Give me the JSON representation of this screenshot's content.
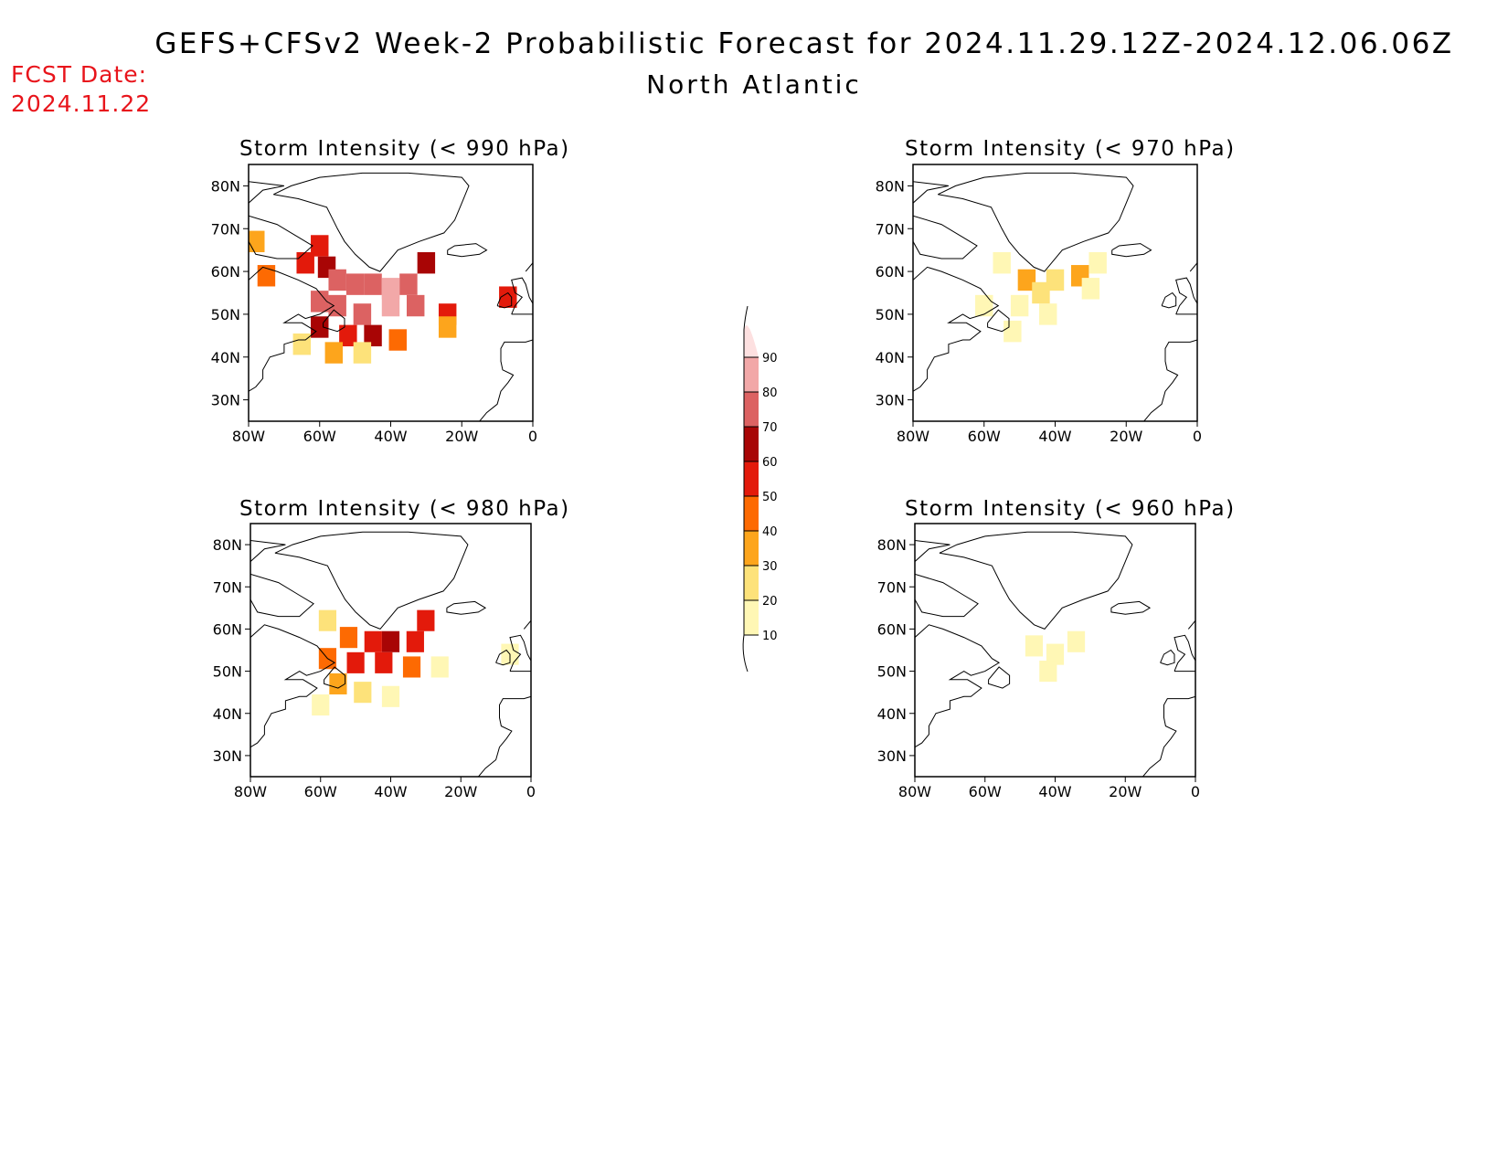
{
  "header": {
    "title": "GEFS+CFSv2 Week-2 Probabilistic Forecast for 2024.11.29.12Z-2024.12.06.06Z",
    "region": "North Atlantic",
    "fcst_label": "FCST Date:",
    "fcst_date": "2024.11.22",
    "fcst_color": "#e8141b"
  },
  "axes": {
    "lon_ticks": [
      {
        "value": -80,
        "label": "80W"
      },
      {
        "value": -60,
        "label": "60W"
      },
      {
        "value": -40,
        "label": "40W"
      },
      {
        "value": -20,
        "label": "20W"
      },
      {
        "value": 0,
        "label": "0"
      }
    ],
    "lat_ticks": [
      {
        "value": 80,
        "label": "80N"
      },
      {
        "value": 70,
        "label": "70N"
      },
      {
        "value": 60,
        "label": "60N"
      },
      {
        "value": 50,
        "label": "50N"
      },
      {
        "value": 40,
        "label": "40N"
      },
      {
        "value": 30,
        "label": "30N"
      }
    ],
    "lon_range": [
      -80,
      0
    ],
    "lat_range": [
      25,
      85
    ]
  },
  "legend": {
    "levels": [
      10,
      20,
      30,
      40,
      50,
      60,
      70,
      80,
      90
    ],
    "colors": [
      "#fff7b5",
      "#fde27a",
      "#fda51c",
      "#fd6a02",
      "#e31a0b",
      "#a80505",
      "#dc6262",
      "#f2a8a8",
      "#fde0e0"
    ]
  },
  "chart_data": [
    {
      "type": "heatmap",
      "title": "Storm Intensity (< 990 hPa)",
      "cells": [
        {
          "lon": -78,
          "lat": 67,
          "level": 3
        },
        {
          "lon": -75,
          "lat": 59,
          "level": 4
        },
        {
          "lon": -60,
          "lat": 66,
          "level": 5
        },
        {
          "lon": -64,
          "lat": 62,
          "level": 5
        },
        {
          "lon": -58,
          "lat": 61,
          "level": 6
        },
        {
          "lon": -55,
          "lat": 58,
          "level": 7
        },
        {
          "lon": -50,
          "lat": 57,
          "level": 7
        },
        {
          "lon": -45,
          "lat": 57,
          "level": 7
        },
        {
          "lon": -40,
          "lat": 56,
          "level": 8
        },
        {
          "lon": -35,
          "lat": 57,
          "level": 7
        },
        {
          "lon": -30,
          "lat": 62,
          "level": 6
        },
        {
          "lon": -60,
          "lat": 53,
          "level": 7
        },
        {
          "lon": -55,
          "lat": 52,
          "level": 7
        },
        {
          "lon": -48,
          "lat": 50,
          "level": 7
        },
        {
          "lon": -40,
          "lat": 52,
          "level": 8
        },
        {
          "lon": -33,
          "lat": 52,
          "level": 7
        },
        {
          "lon": -60,
          "lat": 47,
          "level": 6
        },
        {
          "lon": -52,
          "lat": 45,
          "level": 5
        },
        {
          "lon": -45,
          "lat": 45,
          "level": 6
        },
        {
          "lon": -38,
          "lat": 44,
          "level": 4
        },
        {
          "lon": -65,
          "lat": 43,
          "level": 2
        },
        {
          "lon": -56,
          "lat": 41,
          "level": 3
        },
        {
          "lon": -48,
          "lat": 41,
          "level": 2
        },
        {
          "lon": -24,
          "lat": 50,
          "level": 5
        },
        {
          "lon": -24,
          "lat": 47,
          "level": 3
        },
        {
          "lon": -7,
          "lat": 54,
          "level": 5
        }
      ]
    },
    {
      "type": "heatmap",
      "title": "Storm Intensity (< 970 hPa)",
      "cells": [
        {
          "lon": -55,
          "lat": 62,
          "level": 1
        },
        {
          "lon": -48,
          "lat": 58,
          "level": 3
        },
        {
          "lon": -40,
          "lat": 58,
          "level": 2
        },
        {
          "lon": -33,
          "lat": 59,
          "level": 3
        },
        {
          "lon": -30,
          "lat": 56,
          "level": 1
        },
        {
          "lon": -50,
          "lat": 52,
          "level": 1
        },
        {
          "lon": -42,
          "lat": 50,
          "level": 1
        },
        {
          "lon": -60,
          "lat": 52,
          "level": 1
        },
        {
          "lon": -52,
          "lat": 46,
          "level": 1
        },
        {
          "lon": -28,
          "lat": 62,
          "level": 1
        },
        {
          "lon": -44,
          "lat": 55,
          "level": 2
        }
      ]
    },
    {
      "type": "heatmap",
      "title": "Storm Intensity (< 980 hPa)",
      "cells": [
        {
          "lon": -58,
          "lat": 62,
          "level": 2
        },
        {
          "lon": -52,
          "lat": 58,
          "level": 4
        },
        {
          "lon": -45,
          "lat": 57,
          "level": 5
        },
        {
          "lon": -40,
          "lat": 57,
          "level": 6
        },
        {
          "lon": -33,
          "lat": 57,
          "level": 5
        },
        {
          "lon": -30,
          "lat": 62,
          "level": 5
        },
        {
          "lon": -58,
          "lat": 53,
          "level": 4
        },
        {
          "lon": -50,
          "lat": 52,
          "level": 5
        },
        {
          "lon": -42,
          "lat": 52,
          "level": 5
        },
        {
          "lon": -34,
          "lat": 51,
          "level": 4
        },
        {
          "lon": -55,
          "lat": 47,
          "level": 3
        },
        {
          "lon": -48,
          "lat": 45,
          "level": 2
        },
        {
          "lon": -60,
          "lat": 42,
          "level": 1
        },
        {
          "lon": -40,
          "lat": 44,
          "level": 1
        },
        {
          "lon": -26,
          "lat": 51,
          "level": 1
        },
        {
          "lon": -6,
          "lat": 54,
          "level": 1
        }
      ]
    },
    {
      "type": "heatmap",
      "title": "Storm Intensity (< 960 hPa)",
      "cells": [
        {
          "lon": -34,
          "lat": 57,
          "level": 1
        },
        {
          "lon": -46,
          "lat": 56,
          "level": 1
        },
        {
          "lon": -40,
          "lat": 54,
          "level": 1
        },
        {
          "lon": -42,
          "lat": 50,
          "level": 1
        }
      ]
    }
  ]
}
